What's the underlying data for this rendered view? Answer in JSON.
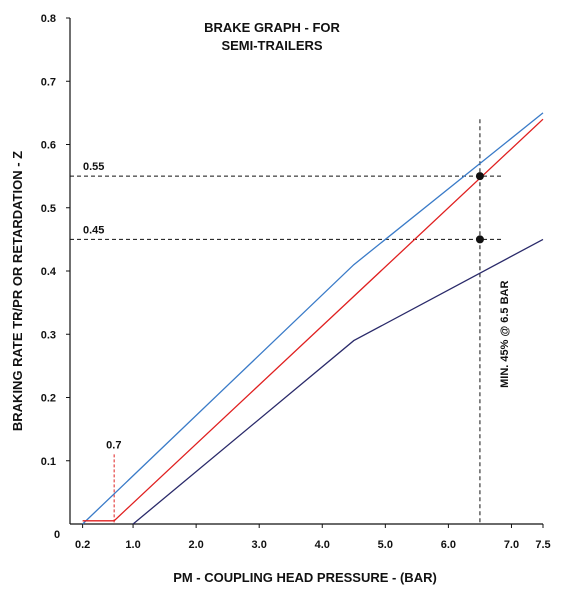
{
  "chart_data": {
    "type": "line",
    "title_lines": [
      "BRAKE GRAPH - FOR",
      "SEMI-TRAILERS"
    ],
    "xlabel": "PM - COUPLING HEAD PRESSURE - (BAR)",
    "ylabel": "BRAKING RATE TR/PR OR RETARDATION - Z",
    "origin_label": "0",
    "x_ticks": [
      {
        "value": 0.2,
        "label": "0.2"
      },
      {
        "value": 1.0,
        "label": "1.0"
      },
      {
        "value": 2.0,
        "label": "2.0"
      },
      {
        "value": 3.0,
        "label": "3.0"
      },
      {
        "value": 4.0,
        "label": "4.0"
      },
      {
        "value": 5.0,
        "label": "5.0"
      },
      {
        "value": 6.0,
        "label": "6.0"
      },
      {
        "value": 7.0,
        "label": "7.0"
      },
      {
        "value": 7.5,
        "label": "7.5"
      }
    ],
    "y_ticks": [
      {
        "value": 0.1,
        "label": "0.1"
      },
      {
        "value": 0.2,
        "label": "0.2"
      },
      {
        "value": 0.3,
        "label": "0.3"
      },
      {
        "value": 0.4,
        "label": "0.4"
      },
      {
        "value": 0.5,
        "label": "0.5"
      },
      {
        "value": 0.6,
        "label": "0.6"
      },
      {
        "value": 0.7,
        "label": "0.7"
      },
      {
        "value": 0.8,
        "label": "0.8"
      }
    ],
    "xlim": [
      0,
      7.5
    ],
    "ylim": [
      0,
      0.8
    ],
    "series": [
      {
        "color": "#3a7bc8",
        "points": [
          [
            0.2,
            0
          ],
          [
            4.5,
            0.41
          ],
          [
            7.5,
            0.65
          ]
        ]
      },
      {
        "color": "#e02020",
        "points": [
          [
            0.2,
            0.005
          ],
          [
            0.7,
            0.005
          ],
          [
            7.5,
            0.64
          ]
        ]
      },
      {
        "color": "#2a2a6a",
        "points": [
          [
            1.0,
            0
          ],
          [
            4.5,
            0.29
          ],
          [
            7.5,
            0.45
          ]
        ]
      }
    ],
    "reference_lines": [
      {
        "axis": "y",
        "value": 0.55,
        "label": "0.55",
        "style": "dashed",
        "color": "#111111"
      },
      {
        "axis": "y",
        "value": 0.45,
        "label": "0.45",
        "style": "dashed",
        "color": "#111111"
      },
      {
        "axis": "x",
        "value": 6.5,
        "label": "MIN. 45% @ 6.5 BAR",
        "style": "dashed",
        "color": "#111111"
      },
      {
        "axis": "x",
        "value": 0.7,
        "label": "0.7",
        "style": "dashed",
        "color": "#e02020"
      }
    ],
    "markers": [
      {
        "x": 6.5,
        "y": 0.55
      },
      {
        "x": 6.5,
        "y": 0.45
      }
    ],
    "grid": false
  }
}
